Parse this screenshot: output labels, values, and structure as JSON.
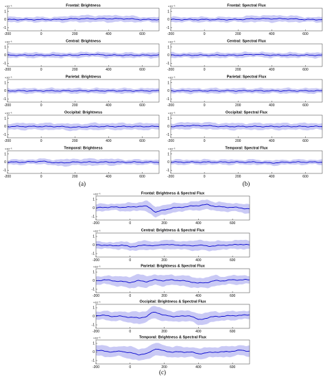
{
  "figure": {
    "captions": [
      "(a)",
      "(b)",
      "(c)"
    ]
  },
  "chart_data": [
    {
      "type": "line",
      "panel": "a",
      "title": "Frontal: Brightness",
      "x": [
        -200,
        -100,
        0,
        100,
        200,
        300,
        400,
        500,
        600,
        700
      ],
      "y": [
        0,
        0,
        0,
        0,
        0.1,
        0.1,
        0.1,
        0.1,
        0,
        0
      ],
      "band": [
        0.3,
        0.3,
        0.3,
        0.3,
        0.4,
        0.4,
        0.4,
        0.4,
        0.3,
        0.3
      ],
      "xlim": [
        -200,
        700
      ],
      "ylim": [
        -1.4,
        1.4
      ],
      "yticks": [
        -1,
        0,
        1
      ],
      "xticks": [
        -200,
        0,
        200,
        400,
        600
      ],
      "exponent": "×10⁻⁶",
      "grid": false
    },
    {
      "type": "line",
      "panel": "a",
      "title": "Central: Brightness",
      "x": [
        -200,
        -100,
        0,
        100,
        200,
        300,
        400,
        500,
        600,
        700
      ],
      "y": [
        0,
        0,
        0,
        0,
        0,
        0.1,
        0,
        0,
        0,
        0
      ],
      "band": [
        0.3,
        0.3,
        0.3,
        0.3,
        0.3,
        0.3,
        0.3,
        0.3,
        0.3,
        0.3
      ],
      "xlim": [
        -200,
        700
      ],
      "ylim": [
        -1.4,
        1.4
      ],
      "yticks": [
        -1,
        0,
        1
      ],
      "xticks": [
        -200,
        0,
        200,
        400,
        600
      ],
      "exponent": "×10⁻⁶",
      "grid": false
    },
    {
      "type": "line",
      "panel": "a",
      "title": "Parietal: Brightness",
      "x": [
        -200,
        -100,
        0,
        100,
        200,
        300,
        400,
        500,
        600,
        700
      ],
      "y": [
        0,
        0,
        0,
        0,
        0,
        0,
        0,
        0,
        0,
        0
      ],
      "band": [
        0.3,
        0.3,
        0.3,
        0.3,
        0.3,
        0.3,
        0.3,
        0.3,
        0.3,
        0.3
      ],
      "xlim": [
        -200,
        700
      ],
      "ylim": [
        -1.4,
        1.4
      ],
      "yticks": [
        -1,
        0,
        1
      ],
      "xticks": [
        -200,
        0,
        200,
        400,
        600
      ],
      "exponent": "×10⁻⁶",
      "grid": false
    },
    {
      "type": "line",
      "panel": "a",
      "title": "Occipital: Brightness",
      "x": [
        -200,
        -100,
        0,
        100,
        200,
        300,
        400,
        500,
        600,
        700
      ],
      "y": [
        0,
        0,
        0,
        0,
        -0.1,
        0,
        0,
        0,
        0,
        0
      ],
      "band": [
        0.4,
        0.4,
        0.4,
        0.4,
        0.4,
        0.4,
        0.4,
        0.4,
        0.4,
        0.4
      ],
      "xlim": [
        -200,
        700
      ],
      "ylim": [
        -1.4,
        1.4
      ],
      "yticks": [
        -1,
        0,
        1
      ],
      "xticks": [
        -200,
        0,
        200,
        400,
        600
      ],
      "exponent": "×10⁻⁶",
      "grid": false
    },
    {
      "type": "line",
      "panel": "a",
      "title": "Temporal: Brightness",
      "x": [
        -200,
        -100,
        0,
        100,
        200,
        300,
        400,
        500,
        600,
        700
      ],
      "y": [
        0,
        0,
        0.1,
        -0.1,
        0,
        0,
        0,
        0,
        0,
        0
      ],
      "band": [
        0.3,
        0.3,
        0.3,
        0.4,
        0.4,
        0.4,
        0.4,
        0.3,
        0.3,
        0.3
      ],
      "xlim": [
        -200,
        700
      ],
      "ylim": [
        -1.4,
        1.4
      ],
      "yticks": [
        -1,
        0,
        1
      ],
      "xticks": [
        -200,
        0,
        200,
        400,
        600
      ],
      "exponent": "×10⁻⁶",
      "grid": false
    },
    {
      "type": "line",
      "panel": "b",
      "title": "Frontal: Spectral Flux",
      "x": [
        -200,
        -100,
        0,
        100,
        200,
        300,
        400,
        500,
        600,
        700
      ],
      "y": [
        0,
        0,
        0,
        0,
        0,
        0.1,
        0.1,
        0.1,
        0,
        0
      ],
      "band": [
        0.3,
        0.3,
        0.3,
        0.3,
        0.3,
        0.4,
        0.4,
        0.4,
        0.3,
        0.3
      ],
      "xlim": [
        -200,
        700
      ],
      "ylim": [
        -1.4,
        1.4
      ],
      "yticks": [
        -1,
        0,
        1
      ],
      "xticks": [
        -200,
        0,
        200,
        400,
        600
      ],
      "exponent": "×10⁻⁶",
      "grid": false
    },
    {
      "type": "line",
      "panel": "b",
      "title": "Central: Spectral Flux",
      "x": [
        -200,
        -100,
        0,
        100,
        200,
        300,
        400,
        500,
        600,
        700
      ],
      "y": [
        0,
        0,
        0,
        0,
        0,
        0.1,
        0,
        0,
        0,
        0
      ],
      "band": [
        0.3,
        0.3,
        0.3,
        0.3,
        0.3,
        0.3,
        0.3,
        0.3,
        0.3,
        0.3
      ],
      "xlim": [
        -200,
        700
      ],
      "ylim": [
        -1.4,
        1.4
      ],
      "yticks": [
        -1,
        0,
        1
      ],
      "xticks": [
        -200,
        0,
        200,
        400,
        600
      ],
      "exponent": "×10⁻⁶",
      "grid": false
    },
    {
      "type": "line",
      "panel": "b",
      "title": "Parietal: Spectral Flux",
      "x": [
        -200,
        -100,
        0,
        100,
        200,
        300,
        400,
        500,
        600,
        700
      ],
      "y": [
        0,
        0,
        0,
        0,
        0,
        0,
        0,
        0,
        0,
        0
      ],
      "band": [
        0.3,
        0.3,
        0.3,
        0.3,
        0.3,
        0.3,
        0.3,
        0.3,
        0.3,
        0.3
      ],
      "xlim": [
        -200,
        700
      ],
      "ylim": [
        -1.4,
        1.4
      ],
      "yticks": [
        -1,
        0,
        1
      ],
      "xticks": [
        -200,
        0,
        200,
        400,
        600
      ],
      "exponent": "×10⁻⁶",
      "grid": false
    },
    {
      "type": "line",
      "panel": "b",
      "title": "Occipital: Spectral Flux",
      "x": [
        -200,
        -100,
        0,
        100,
        200,
        300,
        400,
        500,
        600,
        700
      ],
      "y": [
        0,
        0.1,
        0.1,
        0,
        0,
        0,
        0,
        0,
        0,
        0
      ],
      "band": [
        0.4,
        0.4,
        0.4,
        0.4,
        0.4,
        0.4,
        0.4,
        0.4,
        0.4,
        0.4
      ],
      "xlim": [
        -200,
        700
      ],
      "ylim": [
        -1.4,
        1.4
      ],
      "yticks": [
        -1,
        0,
        1
      ],
      "xticks": [
        -200,
        0,
        200,
        400,
        600
      ],
      "exponent": "×10⁻⁶",
      "grid": false
    },
    {
      "type": "line",
      "panel": "b",
      "title": "Temporal: Spectral Flux",
      "x": [
        -200,
        -100,
        0,
        100,
        200,
        300,
        400,
        500,
        600,
        700
      ],
      "y": [
        0,
        0,
        0,
        0,
        0,
        0,
        -0.1,
        0,
        0,
        0
      ],
      "band": [
        0.3,
        0.3,
        0.3,
        0.3,
        0.3,
        0.3,
        0.3,
        0.3,
        0.3,
        0.3
      ],
      "xlim": [
        -200,
        700
      ],
      "ylim": [
        -1.4,
        1.4
      ],
      "yticks": [
        -1,
        0,
        1
      ],
      "xticks": [
        -200,
        0,
        200,
        400,
        600
      ],
      "exponent": "×10⁻⁶",
      "grid": false
    },
    {
      "type": "line",
      "panel": "c",
      "title": "Frontal: Brightness & Spectral Flux",
      "x": [
        -200,
        -150,
        -100,
        -50,
        0,
        50,
        100,
        125,
        150,
        200,
        250,
        300,
        350,
        400,
        450,
        500,
        550,
        600,
        650,
        700
      ],
      "y": [
        0,
        0.1,
        0.1,
        0.1,
        0.1,
        0.2,
        0.2,
        -0.1,
        -0.5,
        -0.2,
        0,
        0.1,
        0.2,
        0.3,
        0.4,
        0.2,
        0.1,
        0.1,
        0,
        -0.1
      ],
      "band": [
        0.4,
        0.4,
        0.4,
        0.4,
        0.5,
        0.5,
        0.6,
        0.6,
        0.6,
        0.6,
        0.5,
        0.5,
        0.5,
        0.5,
        0.6,
        0.5,
        0.5,
        0.5,
        0.5,
        0.5
      ],
      "xlim": [
        -200,
        700
      ],
      "ylim": [
        -1.4,
        1.4
      ],
      "yticks": [
        -1,
        0,
        1
      ],
      "xticks": [
        -200,
        0,
        200,
        400,
        600
      ],
      "exponent": "×10⁻⁶",
      "grid": false
    },
    {
      "type": "line",
      "panel": "c",
      "title": "Central: Brightness & Spectral Flux",
      "x": [
        -200,
        -150,
        -100,
        -50,
        0,
        50,
        100,
        150,
        200,
        250,
        300,
        350,
        400,
        450,
        500,
        550,
        600,
        650,
        700
      ],
      "y": [
        0,
        0,
        -0.1,
        0,
        -0.2,
        -0.1,
        0,
        -0.1,
        0.1,
        0,
        0,
        -0.1,
        0,
        -0.1,
        -0.1,
        0,
        0,
        0.1,
        0
      ],
      "band": [
        0.4,
        0.4,
        0.4,
        0.4,
        0.5,
        0.5,
        0.5,
        0.5,
        0.5,
        0.5,
        0.5,
        0.5,
        0.6,
        0.6,
        0.5,
        0.5,
        0.5,
        0.5,
        0.5
      ],
      "xlim": [
        -200,
        700
      ],
      "ylim": [
        -1.4,
        1.4
      ],
      "yticks": [
        -1,
        0,
        1
      ],
      "xticks": [
        -200,
        0,
        200,
        400,
        600
      ],
      "exponent": "×10⁻⁶",
      "grid": false
    },
    {
      "type": "line",
      "panel": "c",
      "title": "Parietal: Brightness & Spectral Flux",
      "x": [
        -200,
        -150,
        -100,
        -50,
        0,
        50,
        100,
        150,
        200,
        250,
        300,
        350,
        400,
        450,
        500,
        550,
        600,
        650,
        700
      ],
      "y": [
        0,
        0.1,
        0,
        -0.1,
        -0.2,
        0,
        -0.1,
        0.1,
        0,
        0.1,
        0,
        -0.1,
        -0.3,
        -0.2,
        0,
        0,
        0.1,
        0.1,
        0.1
      ],
      "band": [
        0.5,
        0.5,
        0.5,
        0.6,
        0.7,
        0.7,
        0.7,
        0.6,
        0.6,
        0.6,
        0.6,
        0.6,
        0.6,
        0.6,
        0.6,
        0.5,
        0.5,
        0.5,
        0.5
      ],
      "xlim": [
        -200,
        700
      ],
      "ylim": [
        -1.4,
        1.4
      ],
      "yticks": [
        -1,
        0,
        1
      ],
      "xticks": [
        -200,
        0,
        200,
        400,
        600
      ],
      "exponent": "×10⁻⁶",
      "grid": false
    },
    {
      "type": "line",
      "panel": "c",
      "title": "Occipital: Brightness & Spectral Flux",
      "x": [
        -200,
        -150,
        -100,
        -50,
        0,
        50,
        100,
        125,
        150,
        200,
        250,
        300,
        350,
        400,
        450,
        500,
        550,
        600,
        650,
        700
      ],
      "y": [
        0.1,
        0.1,
        0,
        0,
        -0.1,
        -0.2,
        0,
        0.4,
        0.5,
        0.1,
        0,
        0,
        0.1,
        -0.4,
        -0.2,
        0,
        0,
        0.1,
        0.1,
        0.2
      ],
      "band": [
        0.5,
        0.5,
        0.5,
        0.6,
        0.6,
        0.7,
        0.7,
        0.7,
        0.7,
        0.7,
        0.6,
        0.6,
        0.6,
        0.7,
        0.6,
        0.6,
        0.5,
        0.5,
        0.5,
        0.5
      ],
      "xlim": [
        -200,
        700
      ],
      "ylim": [
        -1.4,
        1.4
      ],
      "yticks": [
        -1,
        0,
        1
      ],
      "xticks": [
        -200,
        0,
        200,
        400,
        600
      ],
      "exponent": "×10⁻⁶",
      "grid": false
    },
    {
      "type": "line",
      "panel": "c",
      "title": "Temporal: Brightness & Spectral Flux",
      "x": [
        -200,
        -150,
        -100,
        -50,
        0,
        50,
        100,
        150,
        200,
        250,
        300,
        350,
        400,
        450,
        500,
        550,
        600,
        650,
        700
      ],
      "y": [
        0.2,
        0.1,
        0,
        0.1,
        -0.1,
        -0.3,
        -0.2,
        0.4,
        0.1,
        0,
        0,
        0,
        -0.2,
        -0.1,
        0,
        0,
        0.1,
        0.2,
        0.1
      ],
      "band": [
        0.6,
        0.6,
        0.6,
        0.6,
        0.7,
        0.7,
        0.7,
        0.7,
        0.7,
        0.6,
        0.6,
        0.6,
        0.6,
        0.6,
        0.6,
        0.6,
        0.6,
        0.6,
        0.6
      ],
      "xlim": [
        -200,
        700
      ],
      "ylim": [
        -1.4,
        1.4
      ],
      "yticks": [
        -1,
        0,
        1
      ],
      "xticks": [
        -200,
        0,
        200,
        400,
        600
      ],
      "exponent": "×10⁻⁶",
      "grid": false
    }
  ]
}
